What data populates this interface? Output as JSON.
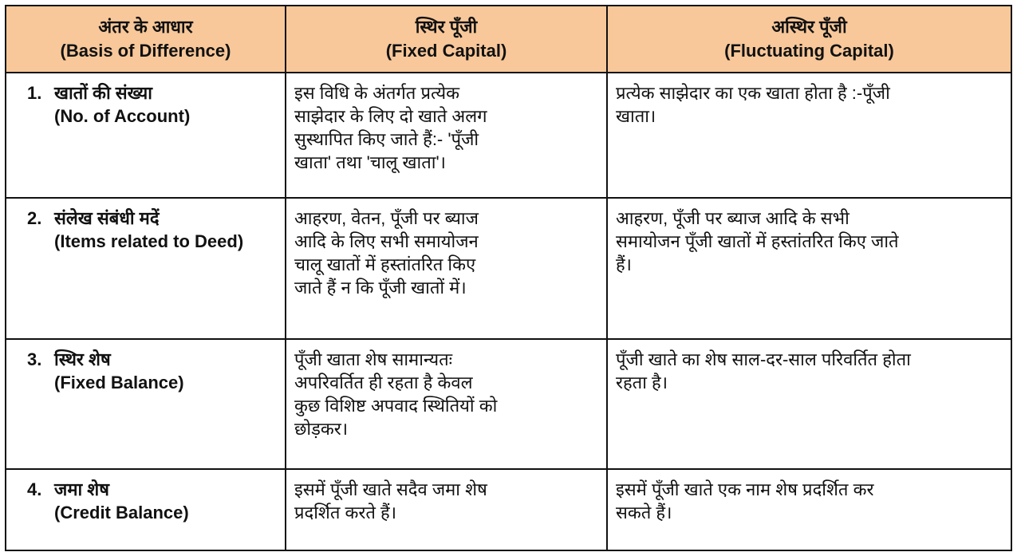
{
  "header": {
    "basis": {
      "hi": "अंतर के आधार",
      "en": "(Basis of Difference)"
    },
    "fixed": {
      "hi": "स्थिर पूँजी",
      "en": "(Fixed Capital)"
    },
    "fluctuating": {
      "hi": "अस्थिर पूँजी",
      "en": "(Fluctuating Capital)"
    }
  },
  "header_color": "#F8C89A",
  "rows": [
    {
      "num": "1.",
      "basis_hi": "खातों की संख्या",
      "basis_en": "(No. of Account)",
      "fixed": [
        "इस विधि के अंतर्गत प्रत्येक",
        "साझेदार के लिए दो खाते अलग",
        "सुस्थापित किए जाते हैं:- 'पूँजी",
        "खाता' तथा 'चालू खाता'।"
      ],
      "fluctuating": [
        "प्रत्येक साझेदार का एक खाता होता है :-पूँजी",
        "खाता।"
      ]
    },
    {
      "num": "2.",
      "basis_hi": "संलेख संबंधी मदें",
      "basis_en": "(Items related to Deed)",
      "fixed": [
        "आहरण, वेतन, पूँजी पर ब्याज",
        "आदि के लिए सभी समायोजन",
        "चालू खातों में हस्तांतरित किए",
        "जाते हैं न कि पूँजी खातों में।"
      ],
      "fluctuating": [
        "आहरण, पूँजी पर ब्याज आदि के सभी",
        "समायोजन पूँजी खातों में हस्तांतरित किए जाते",
        "हैं।"
      ]
    },
    {
      "num": "3.",
      "basis_hi": "स्थिर शेष",
      "basis_en": "(Fixed Balance)",
      "fixed": [
        "पूँजी खाता शेष सामान्यतः",
        "अपरिवर्तित ही रहता है केवल",
        "कुछ विशिष्ट अपवाद स्थितियों को",
        "छोड़कर।"
      ],
      "fluctuating": [
        "पूँजी खाते का शेष साल-दर-साल परिवर्तित होता",
        "रहता है।"
      ]
    },
    {
      "num": "4.",
      "basis_hi": "जमा शेष",
      "basis_en": "(Credit Balance)",
      "fixed": [
        "इसमें पूँजी खाते सदैव जमा शेष",
        "प्रदर्शित करते हैं।"
      ],
      "fluctuating": [
        "इसमें पूँजी खाते एक नाम शेष प्रदर्शित कर",
        "सकते हैं।"
      ]
    }
  ]
}
